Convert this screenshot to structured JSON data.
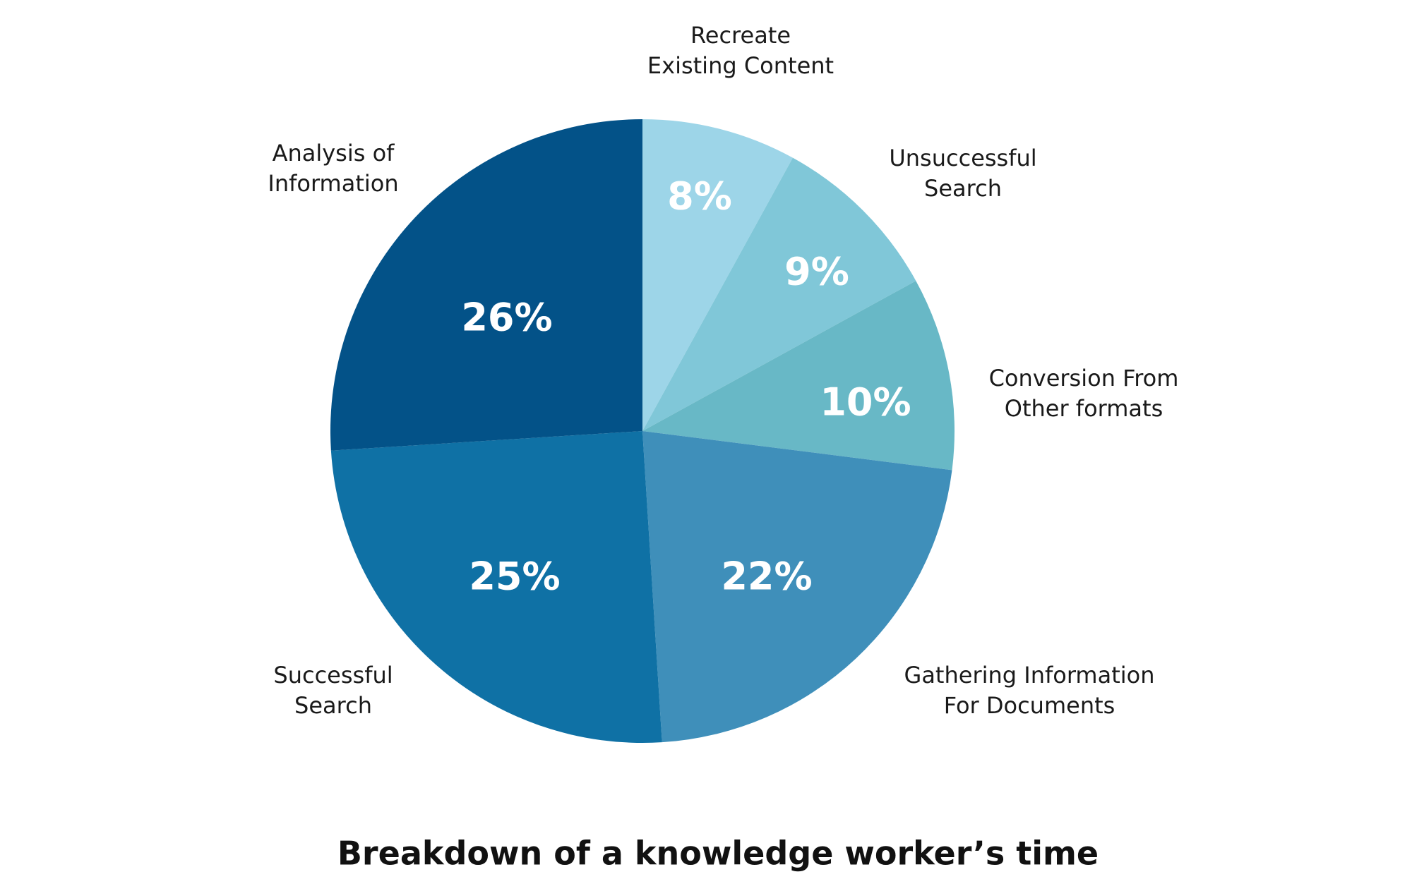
{
  "chart_data": {
    "type": "pie",
    "title": "Breakdown of a knowledge worker’s time",
    "categories": [
      [
        "Recreate",
        "Existing Content"
      ],
      [
        "Unsuccessful",
        "Search"
      ],
      [
        "Conversion From",
        "Other formats"
      ],
      [
        "Gathering Information",
        "For Documents"
      ],
      [
        "Successful",
        "Search"
      ],
      [
        "Analysis of",
        "Information"
      ]
    ],
    "values": [
      8,
      9,
      10,
      22,
      25,
      26
    ],
    "value_labels": [
      "8%",
      "9%",
      "10%",
      "22%",
      "25%",
      "26%"
    ],
    "colors": [
      "#9dd5e8",
      "#80c7d8",
      "#68b8c6",
      "#3f8fba",
      "#0f71a5",
      "#035288"
    ]
  }
}
